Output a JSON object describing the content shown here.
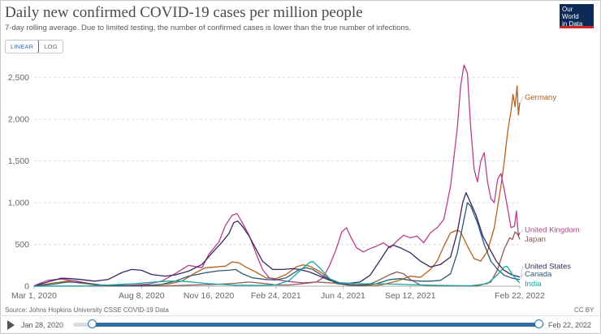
{
  "title": "Daily new confirmed COVID-19 cases per million people",
  "subtitle": "7-day rolling average. Due to limited testing, the number of confirmed cases is lower than the true number of infections.",
  "logo": {
    "line1": "Our World",
    "line2": "in Data"
  },
  "scale_toggle": {
    "linear_label": "LINEAR",
    "log_label": "LOG",
    "active": "LINEAR"
  },
  "source": "Source: Johns Hopkins University CSSE COVID-19 Data",
  "license": "CC BY",
  "timeline": {
    "start": "Jan 28, 2020",
    "end": "Feb 22, 2022"
  },
  "colors": {
    "germany": "#b5611d",
    "united_kingdom": "#b8408f",
    "japan": "#8a5c54",
    "united_states": "#3d2660",
    "canada": "#2e5a75",
    "india": "#15a6a3",
    "grid": "#dddddd",
    "axis_text": "#666666"
  },
  "chart_data": {
    "type": "line",
    "title": "Daily new confirmed COVID-19 cases per million people",
    "x_unit": "days since 2020-03-01",
    "xlim": [
      0,
      723
    ],
    "ylim": [
      0,
      2700
    ],
    "y_ticks": [
      0,
      500,
      1000,
      1500,
      2000,
      2500
    ],
    "y_tick_labels": [
      "0",
      "500",
      "1,000",
      "1,500",
      "2,000",
      "2,500"
    ],
    "x_ticks": [
      0,
      160,
      260,
      360,
      460,
      560,
      723
    ],
    "x_tick_labels": [
      "Mar 1, 2020",
      "Aug 8, 2020",
      "Nov 16, 2020",
      "Feb 24, 2021",
      "Jun 4, 2021",
      "Sep 12, 2021",
      "Feb 22, 2022"
    ],
    "grid": true,
    "series": [
      {
        "name": "Germany",
        "key": "germany",
        "label_y": 2270,
        "points": [
          [
            0,
            0
          ],
          [
            30,
            40
          ],
          [
            50,
            60
          ],
          [
            70,
            35
          ],
          [
            100,
            10
          ],
          [
            150,
            10
          ],
          [
            180,
            15
          ],
          [
            200,
            25
          ],
          [
            220,
            60
          ],
          [
            240,
            160
          ],
          [
            255,
            220
          ],
          [
            270,
            230
          ],
          [
            285,
            240
          ],
          [
            295,
            290
          ],
          [
            305,
            280
          ],
          [
            315,
            230
          ],
          [
            330,
            170
          ],
          [
            345,
            100
          ],
          [
            360,
            90
          ],
          [
            375,
            140
          ],
          [
            390,
            230
          ],
          [
            400,
            255
          ],
          [
            410,
            240
          ],
          [
            420,
            200
          ],
          [
            430,
            150
          ],
          [
            440,
            80
          ],
          [
            450,
            30
          ],
          [
            470,
            10
          ],
          [
            490,
            8
          ],
          [
            510,
            10
          ],
          [
            520,
            20
          ],
          [
            540,
            60
          ],
          [
            560,
            120
          ],
          [
            575,
            105
          ],
          [
            590,
            200
          ],
          [
            600,
            300
          ],
          [
            610,
            480
          ],
          [
            620,
            640
          ],
          [
            630,
            670
          ],
          [
            635,
            650
          ],
          [
            645,
            480
          ],
          [
            655,
            330
          ],
          [
            665,
            300
          ],
          [
            675,
            420
          ],
          [
            685,
            700
          ],
          [
            695,
            1200
          ],
          [
            700,
            1500
          ],
          [
            705,
            1850
          ],
          [
            710,
            2100
          ],
          [
            713,
            2300
          ],
          [
            716,
            2150
          ],
          [
            719,
            2400
          ],
          [
            721,
            2050
          ],
          [
            723,
            2200
          ]
        ]
      },
      {
        "name": "United Kingdom",
        "key": "united_kingdom",
        "label_y": 680,
        "points": [
          [
            0,
            5
          ],
          [
            20,
            70
          ],
          [
            40,
            85
          ],
          [
            60,
            65
          ],
          [
            80,
            35
          ],
          [
            100,
            15
          ],
          [
            140,
            10
          ],
          [
            170,
            25
          ],
          [
            190,
            60
          ],
          [
            210,
            150
          ],
          [
            230,
            250
          ],
          [
            250,
            220
          ],
          [
            260,
            380
          ],
          [
            275,
            530
          ],
          [
            285,
            730
          ],
          [
            295,
            850
          ],
          [
            302,
            870
          ],
          [
            310,
            760
          ],
          [
            320,
            610
          ],
          [
            330,
            400
          ],
          [
            340,
            200
          ],
          [
            350,
            100
          ],
          [
            360,
            80
          ],
          [
            380,
            55
          ],
          [
            400,
            40
          ],
          [
            420,
            50
          ],
          [
            430,
            100
          ],
          [
            440,
            250
          ],
          [
            450,
            450
          ],
          [
            458,
            650
          ],
          [
            465,
            700
          ],
          [
            472,
            580
          ],
          [
            480,
            460
          ],
          [
            490,
            410
          ],
          [
            500,
            450
          ],
          [
            510,
            480
          ],
          [
            520,
            520
          ],
          [
            530,
            460
          ],
          [
            540,
            540
          ],
          [
            550,
            610
          ],
          [
            560,
            580
          ],
          [
            570,
            600
          ],
          [
            580,
            520
          ],
          [
            590,
            640
          ],
          [
            600,
            700
          ],
          [
            610,
            800
          ],
          [
            620,
            1200
          ],
          [
            630,
            1900
          ],
          [
            635,
            2400
          ],
          [
            640,
            2650
          ],
          [
            645,
            2550
          ],
          [
            650,
            1900
          ],
          [
            655,
            1400
          ],
          [
            660,
            1250
          ],
          [
            665,
            1500
          ],
          [
            670,
            1600
          ],
          [
            675,
            1250
          ],
          [
            680,
            1050
          ],
          [
            685,
            1000
          ],
          [
            690,
            1280
          ],
          [
            695,
            1350
          ],
          [
            700,
            1150
          ],
          [
            705,
            930
          ],
          [
            710,
            700
          ],
          [
            715,
            720
          ],
          [
            718,
            900
          ],
          [
            721,
            600
          ],
          [
            723,
            640
          ]
        ]
      },
      {
        "name": "Japan",
        "key": "japan",
        "label_y": 570,
        "points": [
          [
            0,
            0
          ],
          [
            150,
            2
          ],
          [
            200,
            5
          ],
          [
            240,
            15
          ],
          [
            270,
            20
          ],
          [
            300,
            35
          ],
          [
            320,
            50
          ],
          [
            345,
            30
          ],
          [
            360,
            15
          ],
          [
            380,
            15
          ],
          [
            400,
            30
          ],
          [
            420,
            50
          ],
          [
            440,
            40
          ],
          [
            460,
            30
          ],
          [
            480,
            15
          ],
          [
            500,
            25
          ],
          [
            510,
            60
          ],
          [
            520,
            100
          ],
          [
            530,
            140
          ],
          [
            540,
            170
          ],
          [
            550,
            150
          ],
          [
            560,
            80
          ],
          [
            575,
            15
          ],
          [
            600,
            3
          ],
          [
            660,
            2
          ],
          [
            680,
            50
          ],
          [
            690,
            200
          ],
          [
            700,
            450
          ],
          [
            708,
            580
          ],
          [
            712,
            560
          ],
          [
            716,
            650
          ],
          [
            720,
            620
          ],
          [
            723,
            560
          ]
        ]
      },
      {
        "name": "United States",
        "key": "united_states",
        "label_y": 245,
        "points": [
          [
            0,
            0
          ],
          [
            20,
            50
          ],
          [
            40,
            95
          ],
          [
            55,
            90
          ],
          [
            70,
            80
          ],
          [
            90,
            60
          ],
          [
            110,
            80
          ],
          [
            130,
            160
          ],
          [
            145,
            200
          ],
          [
            160,
            190
          ],
          [
            175,
            140
          ],
          [
            195,
            120
          ],
          [
            210,
            135
          ],
          [
            230,
            180
          ],
          [
            250,
            260
          ],
          [
            265,
            400
          ],
          [
            280,
            530
          ],
          [
            290,
            630
          ],
          [
            297,
            760
          ],
          [
            303,
            780
          ],
          [
            310,
            720
          ],
          [
            320,
            600
          ],
          [
            330,
            450
          ],
          [
            340,
            300
          ],
          [
            355,
            200
          ],
          [
            370,
            200
          ],
          [
            385,
            210
          ],
          [
            395,
            200
          ],
          [
            410,
            170
          ],
          [
            425,
            120
          ],
          [
            440,
            70
          ],
          [
            455,
            40
          ],
          [
            470,
            35
          ],
          [
            485,
            50
          ],
          [
            500,
            130
          ],
          [
            515,
            310
          ],
          [
            528,
            470
          ],
          [
            535,
            490
          ],
          [
            545,
            460
          ],
          [
            560,
            400
          ],
          [
            575,
            300
          ],
          [
            590,
            230
          ],
          [
            605,
            260
          ],
          [
            620,
            350
          ],
          [
            630,
            650
          ],
          [
            638,
            1000
          ],
          [
            643,
            1120
          ],
          [
            648,
            1030
          ],
          [
            658,
            850
          ],
          [
            668,
            600
          ],
          [
            678,
            450
          ],
          [
            688,
            300
          ],
          [
            698,
            200
          ],
          [
            710,
            140
          ],
          [
            723,
            110
          ]
        ]
      },
      {
        "name": "Canada",
        "key": "canada",
        "label_y": 150,
        "points": [
          [
            0,
            0
          ],
          [
            30,
            25
          ],
          [
            50,
            50
          ],
          [
            70,
            45
          ],
          [
            100,
            12
          ],
          [
            140,
            5
          ],
          [
            170,
            10
          ],
          [
            190,
            20
          ],
          [
            210,
            60
          ],
          [
            230,
            120
          ],
          [
            255,
            160
          ],
          [
            275,
            185
          ],
          [
            290,
            190
          ],
          [
            300,
            200
          ],
          [
            310,
            150
          ],
          [
            325,
            100
          ],
          [
            345,
            80
          ],
          [
            360,
            75
          ],
          [
            375,
            100
          ],
          [
            385,
            150
          ],
          [
            395,
            200
          ],
          [
            405,
            220
          ],
          [
            415,
            200
          ],
          [
            430,
            120
          ],
          [
            450,
            40
          ],
          [
            470,
            10
          ],
          [
            490,
            10
          ],
          [
            510,
            30
          ],
          [
            530,
            80
          ],
          [
            545,
            90
          ],
          [
            560,
            70
          ],
          [
            575,
            60
          ],
          [
            590,
            60
          ],
          [
            605,
            70
          ],
          [
            620,
            150
          ],
          [
            630,
            400
          ],
          [
            640,
            800
          ],
          [
            645,
            1000
          ],
          [
            650,
            960
          ],
          [
            660,
            760
          ],
          [
            670,
            500
          ],
          [
            680,
            300
          ],
          [
            690,
            200
          ],
          [
            700,
            130
          ],
          [
            712,
            95
          ],
          [
            723,
            80
          ]
        ]
      },
      {
        "name": "India",
        "key": "india",
        "label_y": 35,
        "points": [
          [
            0,
            0
          ],
          [
            80,
            2
          ],
          [
            150,
            30
          ],
          [
            180,
            50
          ],
          [
            200,
            60
          ],
          [
            220,
            60
          ],
          [
            240,
            45
          ],
          [
            260,
            30
          ],
          [
            280,
            20
          ],
          [
            300,
            12
          ],
          [
            330,
            10
          ],
          [
            360,
            15
          ],
          [
            380,
            70
          ],
          [
            395,
            180
          ],
          [
            410,
            285
          ],
          [
            415,
            295
          ],
          [
            425,
            220
          ],
          [
            440,
            90
          ],
          [
            455,
            40
          ],
          [
            480,
            30
          ],
          [
            520,
            28
          ],
          [
            550,
            20
          ],
          [
            600,
            10
          ],
          [
            650,
            5
          ],
          [
            675,
            30
          ],
          [
            690,
            140
          ],
          [
            700,
            230
          ],
          [
            704,
            240
          ],
          [
            712,
            140
          ],
          [
            720,
            60
          ],
          [
            723,
            40
          ]
        ]
      }
    ]
  }
}
